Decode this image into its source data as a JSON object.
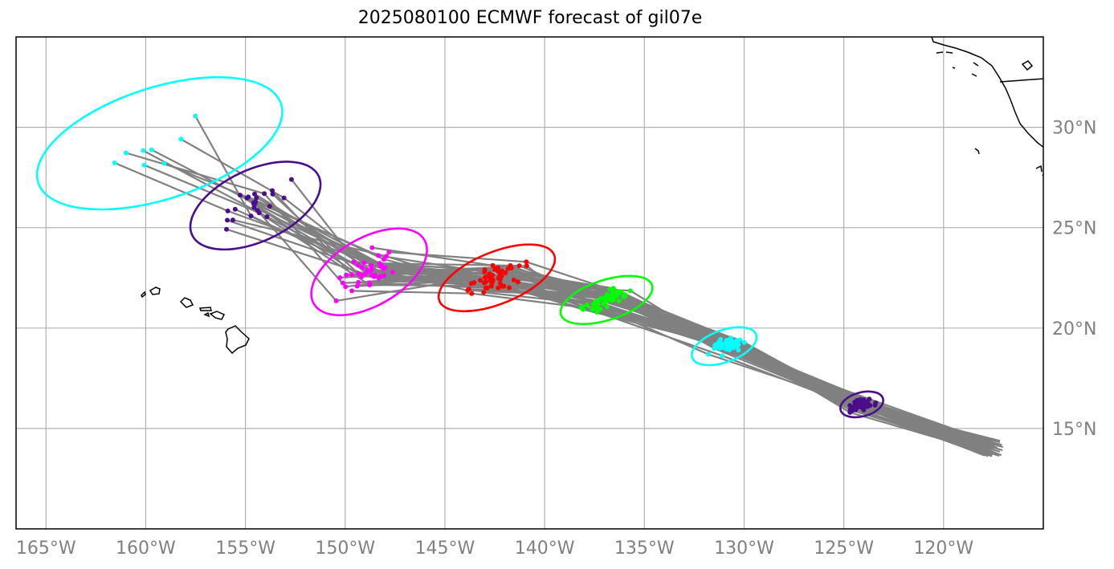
{
  "title": "2025080100 ECMWF forecast of gil07e",
  "map": {
    "lon_range": [
      -166.5,
      -115
    ],
    "lat_range": [
      10,
      34.5
    ],
    "lon_ticks": [
      {
        "value": -165,
        "label": "165°W"
      },
      {
        "value": -160,
        "label": "160°W"
      },
      {
        "value": -155,
        "label": "155°W"
      },
      {
        "value": -150,
        "label": "150°W"
      },
      {
        "value": -145,
        "label": "145°W"
      },
      {
        "value": -140,
        "label": "140°W"
      },
      {
        "value": -135,
        "label": "135°W"
      },
      {
        "value": -130,
        "label": "130°W"
      },
      {
        "value": -125,
        "label": "125°W"
      },
      {
        "value": -120,
        "label": "120°W"
      }
    ],
    "lat_ticks": [
      {
        "value": 15,
        "label": "15°N"
      },
      {
        "value": 20,
        "label": "20°N"
      },
      {
        "value": 25,
        "label": "25°N"
      },
      {
        "value": 30,
        "label": "30°N"
      }
    ],
    "grid": true,
    "colors": {
      "grid": "#b0b0b0",
      "track": "#808080",
      "coast": "#000000",
      "tick_label": "#808080"
    }
  },
  "chart_data": {
    "type": "scatter",
    "description_units": "longitude (degrees, negative = W), latitude (degrees N)",
    "ensemble_track_count": 50,
    "track_origin": [
      -117.5,
      14.0
    ],
    "forecast_groups": [
      {
        "color": "#4b0e8a",
        "center": [
          -124.1,
          16.2
        ],
        "ellipse_semi_axes_deg": [
          1.1,
          0.6
        ],
        "rotation_deg": 15
      },
      {
        "color": "#00ffff",
        "center": [
          -131.0,
          19.1
        ],
        "ellipse_semi_axes_deg": [
          1.7,
          0.8
        ],
        "rotation_deg": 20
      },
      {
        "color": "#00ff00",
        "center": [
          -136.9,
          21.4
        ],
        "ellipse_semi_axes_deg": [
          2.4,
          1.0
        ],
        "rotation_deg": 18
      },
      {
        "color": "#ff0000",
        "center": [
          -142.4,
          22.5
        ],
        "ellipse_semi_axes_deg": [
          3.1,
          1.3
        ],
        "rotation_deg": 22
      },
      {
        "color": "#ff00ff",
        "center": [
          -148.8,
          22.8
        ],
        "ellipse_semi_axes_deg": [
          3.2,
          1.7
        ],
        "rotation_deg": 30
      },
      {
        "color": "#4b0e8a",
        "center": [
          -154.5,
          26.1
        ],
        "ellipse_semi_axes_deg": [
          3.5,
          1.8
        ],
        "rotation_deg": 25
      },
      {
        "color": "#00ffff",
        "center": [
          -159.3,
          29.2
        ],
        "ellipse_semi_axes_deg": [
          6.4,
          2.8
        ],
        "rotation_deg": 18
      }
    ]
  }
}
